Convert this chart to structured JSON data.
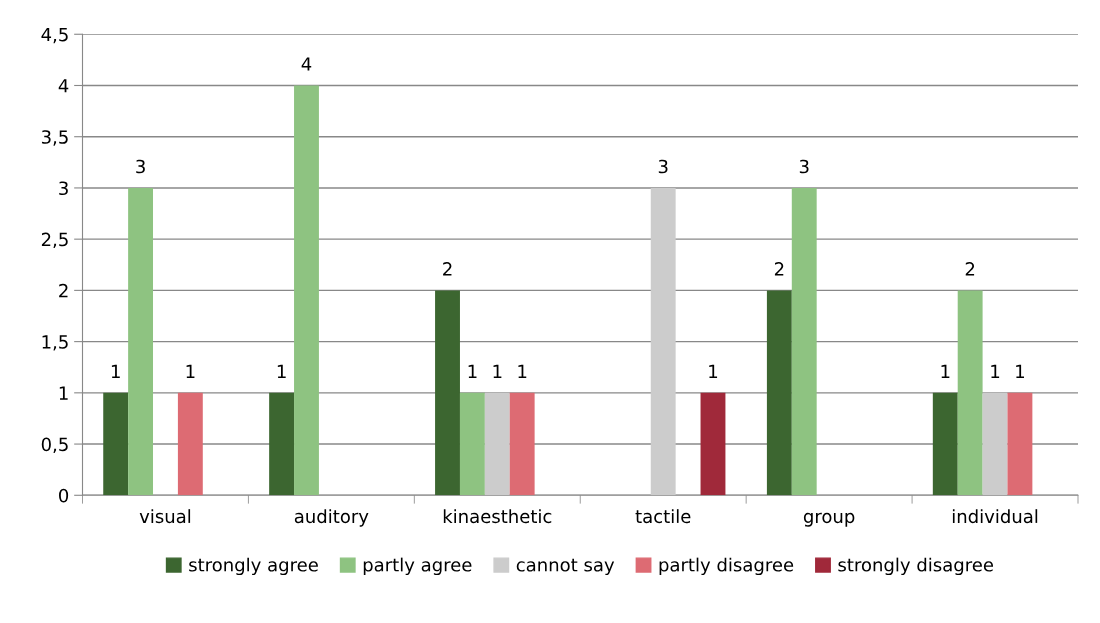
{
  "chart_data": {
    "type": "bar",
    "categories": [
      "visual",
      "auditory",
      "kinaesthetic",
      "tactile",
      "group",
      "individual"
    ],
    "series": [
      {
        "name": "strongly agree",
        "color": "#3c6630",
        "values": [
          1,
          1,
          2,
          null,
          2,
          1
        ]
      },
      {
        "name": "partly agree",
        "color": "#8ec381",
        "values": [
          3,
          4,
          1,
          null,
          3,
          2
        ]
      },
      {
        "name": "cannot say",
        "color": "#cccccc",
        "values": [
          null,
          null,
          1,
          3,
          null,
          1
        ]
      },
      {
        "name": "partly disagree",
        "color": "#dd6b73",
        "values": [
          1,
          null,
          1,
          null,
          null,
          1
        ]
      },
      {
        "name": "strongly disagree",
        "color": "#a0293a",
        "values": [
          null,
          null,
          null,
          1,
          null,
          null
        ]
      }
    ],
    "ylim": [
      0,
      4.5
    ],
    "yticks": [
      0,
      {
        "value": 0.5,
        "label": "0,5"
      },
      1,
      {
        "value": 1.5,
        "label": "1,5"
      },
      2,
      {
        "value": 2.5,
        "label": "2,5"
      },
      3,
      {
        "value": 3.5,
        "label": "3,5"
      },
      4,
      {
        "value": 4.5,
        "label": "4,5"
      }
    ],
    "grid": "y",
    "legend": "bottom",
    "data_labels": true
  }
}
